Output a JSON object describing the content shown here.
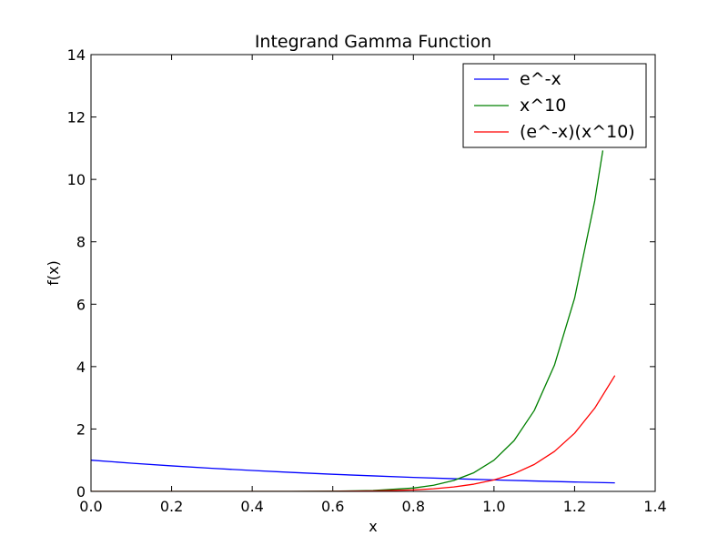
{
  "chart_data": {
    "type": "line",
    "title": "Integrand Gamma Function",
    "xlabel": "x",
    "ylabel": "f(x)",
    "xlim": [
      0.0,
      1.4
    ],
    "ylim": [
      0,
      14
    ],
    "xticks": [
      "0.0",
      "0.2",
      "0.4",
      "0.6",
      "0.8",
      "1.0",
      "1.2",
      "1.4"
    ],
    "yticks": [
      "0",
      "2",
      "4",
      "6",
      "8",
      "10",
      "12",
      "14"
    ],
    "grid": false,
    "legend_position": "top-right",
    "series": [
      {
        "name": "e^-x",
        "color": "#0000ff",
        "x": [
          0.0,
          0.1,
          0.2,
          0.3,
          0.4,
          0.5,
          0.6,
          0.7,
          0.8,
          0.9,
          1.0,
          1.1,
          1.2,
          1.3
        ],
        "y": [
          1.0,
          0.905,
          0.819,
          0.741,
          0.67,
          0.607,
          0.549,
          0.497,
          0.449,
          0.407,
          0.368,
          0.333,
          0.301,
          0.273
        ]
      },
      {
        "name": "x^10",
        "color": "#008000",
        "x": [
          0.0,
          0.3,
          0.5,
          0.6,
          0.7,
          0.8,
          0.85,
          0.9,
          0.95,
          1.0,
          1.05,
          1.1,
          1.15,
          1.2,
          1.25,
          1.27
        ],
        "y": [
          0.0,
          0.0,
          0.001,
          0.006,
          0.028,
          0.107,
          0.197,
          0.349,
          0.599,
          1.0,
          1.629,
          2.594,
          4.046,
          6.192,
          9.313,
          10.926
        ]
      },
      {
        "name": "(e^-x)(x^10)",
        "color": "#ff0000",
        "x": [
          0.0,
          0.3,
          0.5,
          0.6,
          0.7,
          0.8,
          0.85,
          0.9,
          0.95,
          1.0,
          1.05,
          1.1,
          1.15,
          1.2,
          1.25,
          1.3
        ],
        "y": [
          0.0,
          0.0,
          0.001,
          0.003,
          0.014,
          0.048,
          0.084,
          0.142,
          0.232,
          0.368,
          0.57,
          0.864,
          1.281,
          1.865,
          2.668,
          3.713
        ]
      }
    ]
  }
}
